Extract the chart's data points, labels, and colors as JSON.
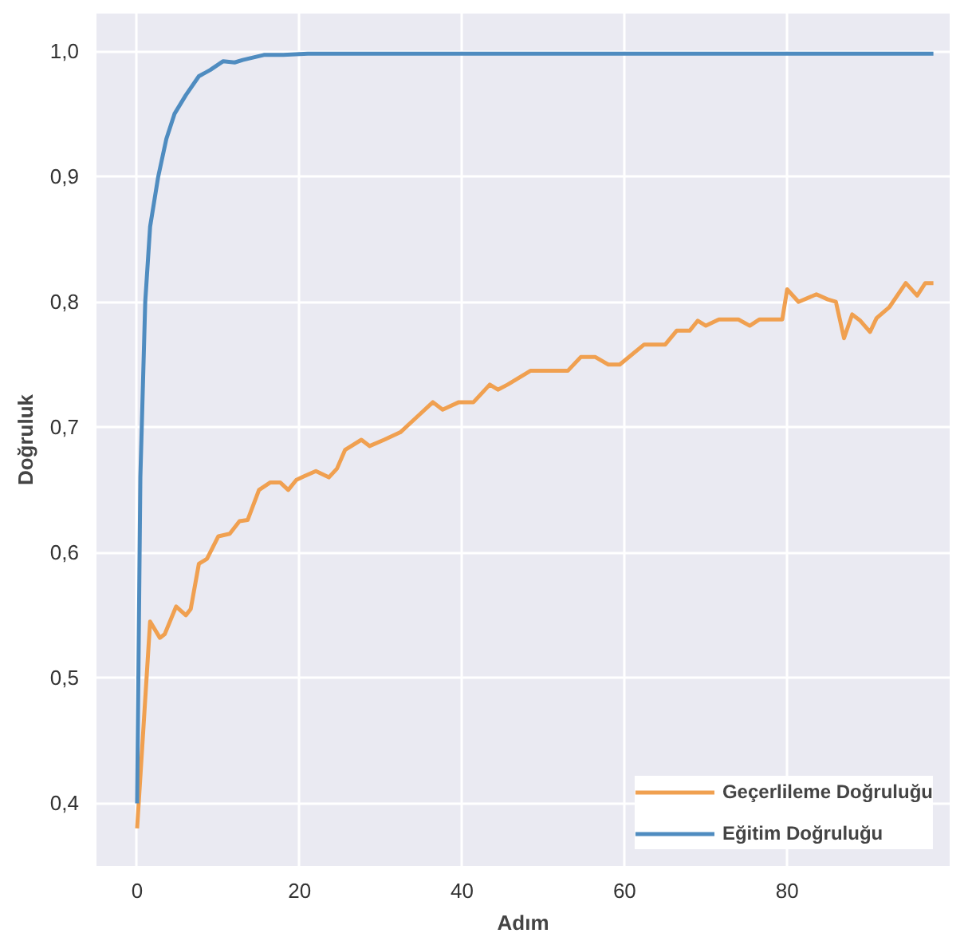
{
  "chart_data": {
    "type": "line",
    "xlabel": "Adım",
    "ylabel": "Doğruluk",
    "xlim": [
      -5,
      100
    ],
    "ylim": [
      0.35,
      1.03
    ],
    "xticks": [
      0,
      20,
      40,
      60,
      80
    ],
    "yticks": [
      {
        "value": 0.4,
        "label": "0,4"
      },
      {
        "value": 0.5,
        "label": "0,5"
      },
      {
        "value": 0.6,
        "label": "0,6"
      },
      {
        "value": 0.7,
        "label": "0,7"
      },
      {
        "value": 0.8,
        "label": "0,8"
      },
      {
        "value": 0.9,
        "label": "0,9"
      },
      {
        "value": 1.0,
        "label": "1,0"
      }
    ],
    "grid": true,
    "legend": "bottom right",
    "line_style": "solid",
    "marker": "none",
    "series": [
      {
        "name": "Geçerlileme Doğruluğu",
        "color": "#f0a050",
        "x": [
          0,
          1.6,
          2.8,
          3.4,
          4.8,
          6,
          6.6,
          7.6,
          8.6,
          10,
          11.4,
          12.6,
          13.6,
          15,
          16.4,
          17.6,
          18.6,
          19.6,
          20.6,
          22,
          23.6,
          24.6,
          25.6,
          27.6,
          28.6,
          30.4,
          32.4,
          34.4,
          36.4,
          37.6,
          39.6,
          41.4,
          43.4,
          44.4,
          45.6,
          48.4,
          53,
          54.6,
          56.4,
          58,
          59.4,
          62.4,
          65,
          66.4,
          68,
          69,
          70,
          71.6,
          74,
          75.4,
          76.6,
          79.4,
          80,
          81.4,
          83.6,
          85,
          86,
          87,
          88,
          89,
          90.2,
          91,
          92.6,
          94.6,
          96,
          97,
          98
        ],
        "values": [
          0.38,
          0.545,
          0.532,
          0.535,
          0.557,
          0.55,
          0.555,
          0.591,
          0.595,
          0.613,
          0.615,
          0.625,
          0.626,
          0.65,
          0.656,
          0.656,
          0.65,
          0.658,
          0.661,
          0.665,
          0.66,
          0.667,
          0.682,
          0.69,
          0.685,
          0.69,
          0.696,
          0.708,
          0.72,
          0.714,
          0.72,
          0.72,
          0.734,
          0.73,
          0.734,
          0.745,
          0.745,
          0.756,
          0.756,
          0.75,
          0.75,
          0.766,
          0.766,
          0.777,
          0.777,
          0.785,
          0.781,
          0.786,
          0.786,
          0.781,
          0.786,
          0.786,
          0.81,
          0.8,
          0.806,
          0.802,
          0.8,
          0.771,
          0.79,
          0.785,
          0.776,
          0.787,
          0.796,
          0.815,
          0.805,
          0.815,
          0.815
        ]
      },
      {
        "name": "Eğitim Doğruluğu",
        "color": "#4f8cc0",
        "x": [
          0,
          0.4,
          1,
          1.6,
          2.6,
          3.6,
          4.6,
          6,
          7.6,
          9,
          10.6,
          12,
          13,
          15.6,
          18,
          21,
          25,
          30,
          40,
          50,
          60,
          70,
          80,
          90,
          98
        ],
        "values": [
          0.4,
          0.66,
          0.8,
          0.86,
          0.9,
          0.93,
          0.95,
          0.965,
          0.98,
          0.985,
          0.992,
          0.991,
          0.993,
          0.997,
          0.997,
          0.998,
          0.998,
          0.998,
          0.998,
          0.998,
          0.998,
          0.998,
          0.998,
          0.998,
          0.998
        ]
      }
    ]
  }
}
